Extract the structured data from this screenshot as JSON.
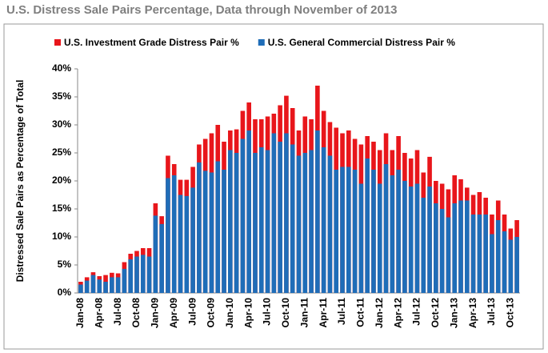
{
  "chart_data": {
    "type": "bar",
    "mode": "overlay",
    "title": "U.S. Distress Sale Pairs Percentage, Data through November of 2013",
    "ylabel": "Distressed Sale Pairs as Percentage of Total",
    "categories": [
      "Jan-08",
      null,
      null,
      "Apr-08",
      null,
      null,
      "Jul-08",
      null,
      null,
      "Oct-08",
      null,
      null,
      "Jan-09",
      null,
      null,
      "Apr-09",
      null,
      null,
      "Jul-09",
      null,
      null,
      "Oct-09",
      null,
      null,
      "Jan-10",
      null,
      null,
      "Apr-10",
      null,
      null,
      "Jul-10",
      null,
      null,
      "Oct-10",
      null,
      null,
      "Jan-11",
      null,
      null,
      "Apr-11",
      null,
      null,
      "Jul-11",
      null,
      null,
      "Oct-11",
      null,
      null,
      "Jan-12",
      null,
      null,
      "Apr-12",
      null,
      null,
      "Jul-12",
      null,
      null,
      "Oct-12",
      null,
      null,
      "Jan-13",
      null,
      null,
      "Apr-13",
      null,
      null,
      "Jul-13",
      null,
      null,
      "Oct-13",
      null
    ],
    "series": [
      {
        "name": "U.S. Investment Grade Distress Pair %",
        "color": "#e8161b",
        "values": [
          2.0,
          2.8,
          3.7,
          3.0,
          3.2,
          3.6,
          3.5,
          5.5,
          7.0,
          7.5,
          8.0,
          8.0,
          16.0,
          13.7,
          24.5,
          23.0,
          20.2,
          20.2,
          22.5,
          26.5,
          27.5,
          28.5,
          30.0,
          27.0,
          29.0,
          29.2,
          32.5,
          34.0,
          31.0,
          31.0,
          31.5,
          32.0,
          33.5,
          35.2,
          33.0,
          29.0,
          31.5,
          31.0,
          37.0,
          32.5,
          30.5,
          29.5,
          28.5,
          29.0,
          27.5,
          26.5,
          28.0,
          27.0,
          25.5,
          28.5,
          25.5,
          28.0,
          25.0,
          24.0,
          25.5,
          21.5,
          24.3,
          20.0,
          19.5,
          18.5,
          21.0,
          20.3,
          18.8,
          17.5,
          18.0,
          17.0,
          14.0,
          16.5,
          14.0,
          11.5,
          13.0
        ]
      },
      {
        "name": "U.S. General Commercial Distress Pair %",
        "color": "#1f6db8",
        "values": [
          1.5,
          2.2,
          3.2,
          2.4,
          2.0,
          2.8,
          2.8,
          4.3,
          6.0,
          6.5,
          6.8,
          6.5,
          13.8,
          12.3,
          20.5,
          21.0,
          17.5,
          17.3,
          18.8,
          23.3,
          21.8,
          21.5,
          23.5,
          22.0,
          25.5,
          25.0,
          27.5,
          29.0,
          25.0,
          26.0,
          25.5,
          28.5,
          27.0,
          28.5,
          26.5,
          24.5,
          25.0,
          25.5,
          29.0,
          26.0,
          24.5,
          22.0,
          22.5,
          22.5,
          22.0,
          19.5,
          24.0,
          22.0,
          19.5,
          23.0,
          21.0,
          22.0,
          20.0,
          19.0,
          19.5,
          17.0,
          19.0,
          16.0,
          15.0,
          13.5,
          16.0,
          16.5,
          16.5,
          14.0,
          14.0,
          14.0,
          10.5,
          13.0,
          11.0,
          9.5,
          10.0
        ]
      }
    ],
    "ylim": [
      0,
      40
    ],
    "yticks": [
      {
        "value": 0,
        "label": "0%"
      },
      {
        "value": 5,
        "label": "5%"
      },
      {
        "value": 10,
        "label": "10%"
      },
      {
        "value": 15,
        "label": "15%"
      },
      {
        "value": 20,
        "label": "20%"
      },
      {
        "value": 25,
        "label": "25%"
      },
      {
        "value": 30,
        "label": "30%"
      },
      {
        "value": 35,
        "label": "35%"
      },
      {
        "value": 40,
        "label": "40%"
      }
    ],
    "grid": false,
    "legend": "top"
  }
}
